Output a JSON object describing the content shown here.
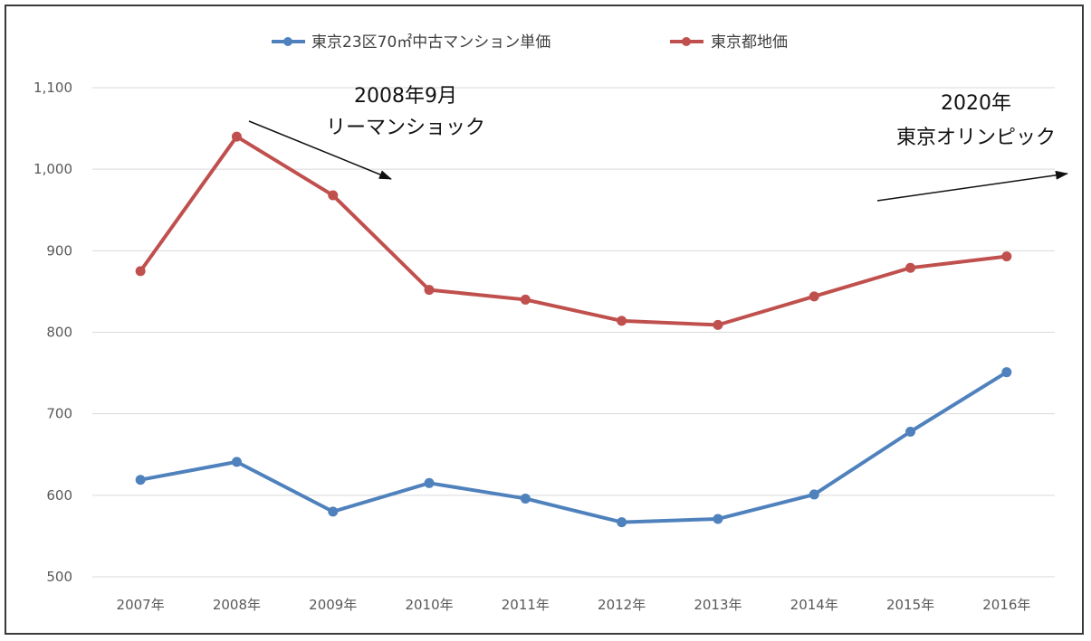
{
  "chart_data": {
    "type": "line",
    "categories": [
      "2007年",
      "2008年",
      "2009年",
      "2010年",
      "2011年",
      "2012年",
      "2013年",
      "2014年",
      "2015年",
      "2016年"
    ],
    "series": [
      {
        "name": "東京23区70㎡中古マンション単価",
        "color": "#4F81BD",
        "values": [
          619,
          641,
          580,
          615,
          596,
          567,
          571,
          601,
          678,
          751
        ]
      },
      {
        "name": "東京都地価",
        "color": "#C0504D",
        "values": [
          875,
          1040,
          968,
          852,
          840,
          814,
          809,
          844,
          879,
          893
        ]
      }
    ],
    "ylim": [
      500,
      1100
    ],
    "yticks": [
      500,
      600,
      700,
      800,
      900,
      1000,
      1100
    ],
    "ytick_labels": [
      "500",
      "600",
      "700",
      "800",
      "900",
      "1,000",
      "1,100"
    ],
    "grid": true,
    "legend_position": "top-center",
    "annotations": [
      {
        "lines": [
          "2008年9月",
          "リーマンショック"
        ]
      },
      {
        "lines": [
          "2020年",
          "東京オリンピック"
        ]
      }
    ]
  }
}
